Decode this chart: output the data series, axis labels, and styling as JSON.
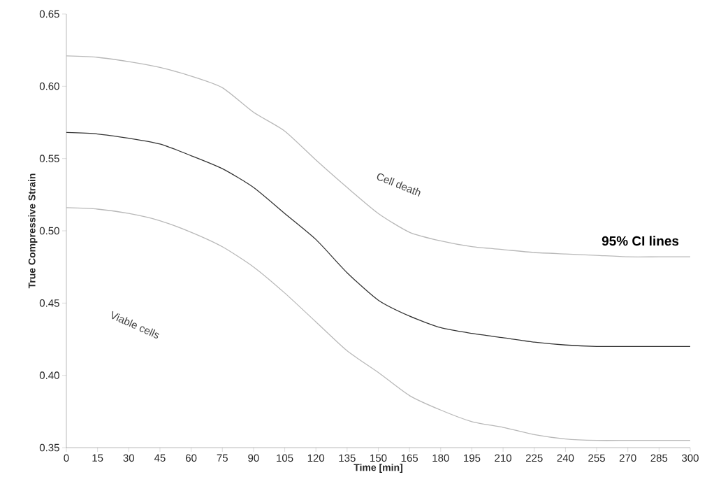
{
  "chart_data": {
    "type": "line",
    "xlabel": "Time [min]",
    "ylabel": "True Compressive Strain",
    "x": [
      0,
      15,
      30,
      45,
      60,
      75,
      90,
      105,
      120,
      135,
      150,
      165,
      180,
      195,
      210,
      225,
      240,
      255,
      270,
      285,
      300
    ],
    "series": [
      {
        "color": "#b8b8b8",
        "values": [
          0.621,
          0.62,
          0.617,
          0.613,
          0.607,
          0.599,
          0.582,
          0.569,
          0.549,
          0.53,
          0.512,
          0.499,
          0.493,
          0.489,
          0.487,
          0.485,
          0.484,
          0.483,
          0.482,
          0.482,
          0.482
        ]
      },
      {
        "color": "#333333",
        "values": [
          0.568,
          0.567,
          0.564,
          0.56,
          0.552,
          0.543,
          0.53,
          0.512,
          0.494,
          0.471,
          0.452,
          0.441,
          0.433,
          0.429,
          0.426,
          0.423,
          0.421,
          0.42,
          0.42,
          0.42,
          0.42
        ]
      },
      {
        "color": "#b8b8b8",
        "values": [
          0.516,
          0.515,
          0.512,
          0.507,
          0.499,
          0.489,
          0.475,
          0.457,
          0.437,
          0.417,
          0.402,
          0.386,
          0.376,
          0.368,
          0.364,
          0.359,
          0.356,
          0.355,
          0.355,
          0.355,
          0.355
        ]
      }
    ],
    "xlim": [
      0,
      300
    ],
    "ylim": [
      0.35,
      0.65
    ],
    "xticks": [
      0,
      15,
      30,
      45,
      60,
      75,
      90,
      105,
      120,
      135,
      150,
      165,
      180,
      195,
      210,
      225,
      240,
      255,
      270,
      285,
      300
    ],
    "yticks": [
      0.35,
      {
        "value": 0.4,
        "label": "0.40"
      },
      0.45,
      {
        "value": 0.5,
        "label": "0.50"
      },
      0.55,
      {
        "value": 0.6,
        "label": "0.60"
      },
      0.65
    ],
    "grid": false,
    "marker": "none",
    "line_style": "solid",
    "annotations": [
      "Cell death",
      "Viable cells",
      "95% CI lines"
    ]
  }
}
